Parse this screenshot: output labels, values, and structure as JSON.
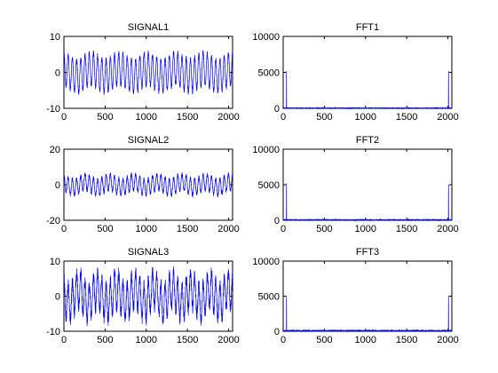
{
  "chart_data": [
    {
      "type": "line",
      "title": "SIGNAL1",
      "xlim": [
        0,
        2048
      ],
      "ylim": [
        -10,
        10
      ],
      "xticks": [
        0,
        500,
        1000,
        1500,
        2000
      ],
      "yticks": [
        -10,
        0,
        10
      ],
      "color": "#0000ff",
      "series": [
        {
          "kind": "sinusoid-sum",
          "n": 2048,
          "components": [
            {
              "freq_bins": 40,
              "amp": 4.5
            },
            {
              "freq_bins": 6,
              "amp": 1.0
            }
          ],
          "noise": 0.8,
          "seed": 11
        }
      ]
    },
    {
      "type": "line",
      "title": "FFT1",
      "xlim": [
        0,
        2048
      ],
      "ylim": [
        0,
        10000
      ],
      "xticks": [
        0,
        500,
        1000,
        1500,
        2000
      ],
      "yticks": [
        0,
        5000,
        10000
      ],
      "color": "#0000ff",
      "series": [
        {
          "kind": "spectrum",
          "n": 2048,
          "peaks": [
            {
              "bin": 40,
              "value": 5200
            },
            {
              "bin": 2008,
              "value": 5200
            },
            {
              "bin": 41,
              "value": 2600
            },
            {
              "bin": 2007,
              "value": 2600
            }
          ],
          "floor": 60,
          "seed": 21
        }
      ]
    },
    {
      "type": "line",
      "title": "SIGNAL2",
      "xlim": [
        0,
        2048
      ],
      "ylim": [
        -20,
        20
      ],
      "xticks": [
        0,
        500,
        1000,
        1500,
        2000
      ],
      "yticks": [
        -20,
        0,
        20
      ],
      "color": "#0000ff",
      "series": [
        {
          "kind": "sinusoid-sum",
          "n": 2048,
          "components": [
            {
              "freq_bins": 40,
              "amp": 4.5
            },
            {
              "freq_bins": 7,
              "amp": 1.5
            }
          ],
          "noise": 1.2,
          "seed": 12
        }
      ]
    },
    {
      "type": "line",
      "title": "FFT2",
      "xlim": [
        0,
        2048
      ],
      "ylim": [
        0,
        10000
      ],
      "xticks": [
        0,
        500,
        1000,
        1500,
        2000
      ],
      "yticks": [
        0,
        5000,
        10000
      ],
      "color": "#0000ff",
      "series": [
        {
          "kind": "spectrum",
          "n": 2048,
          "peaks": [
            {
              "bin": 40,
              "value": 5200
            },
            {
              "bin": 2008,
              "value": 5000
            },
            {
              "bin": 41,
              "value": 2500
            },
            {
              "bin": 2007,
              "value": 2500
            }
          ],
          "floor": 90,
          "seed": 22
        }
      ]
    },
    {
      "type": "line",
      "title": "SIGNAL3",
      "xlim": [
        0,
        2048
      ],
      "ylim": [
        -10,
        10
      ],
      "xticks": [
        0,
        500,
        1000,
        1500,
        2000
      ],
      "yticks": [
        -10,
        0,
        10
      ],
      "color": "#0000ff",
      "series": [
        {
          "kind": "sinusoid-sum",
          "n": 2048,
          "components": [
            {
              "freq_bins": 40,
              "amp": 5.0
            },
            {
              "freq_bins": 9,
              "amp": 2.0
            }
          ],
          "noise": 1.8,
          "seed": 13
        }
      ]
    },
    {
      "type": "line",
      "title": "FFT3",
      "xlim": [
        0,
        2048
      ],
      "ylim": [
        0,
        10000
      ],
      "xticks": [
        0,
        500,
        1000,
        1500,
        2000
      ],
      "yticks": [
        0,
        5000,
        10000
      ],
      "color": "#0000ff",
      "series": [
        {
          "kind": "spectrum",
          "n": 2048,
          "peaks": [
            {
              "bin": 40,
              "value": 5100
            },
            {
              "bin": 2008,
              "value": 5100
            },
            {
              "bin": 41,
              "value": 2600
            },
            {
              "bin": 2007,
              "value": 2600
            }
          ],
          "floor": 160,
          "seed": 23
        }
      ]
    }
  ]
}
